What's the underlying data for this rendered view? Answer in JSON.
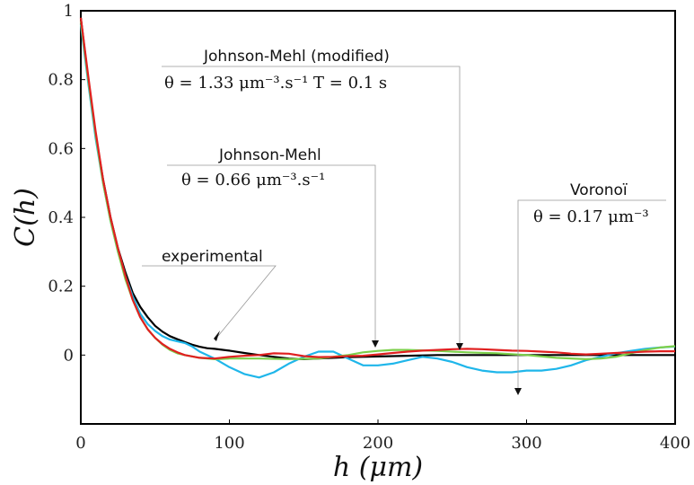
{
  "chart_data": {
    "type": "line",
    "xlabel": "h (μm)",
    "ylabel": "C(h)",
    "xlim": [
      0,
      400
    ],
    "ylim": [
      -0.2,
      1
    ],
    "x_ticks": [
      "0",
      "100",
      "200",
      "300",
      "400"
    ],
    "y_ticks": [
      "0",
      "0.2",
      "0.4",
      "0.6",
      "0.8",
      "1"
    ],
    "grid": false,
    "series": [
      {
        "name": "experimental",
        "color": "#000000",
        "points": [
          [
            0,
            0.98
          ],
          [
            5,
            0.8
          ],
          [
            10,
            0.64
          ],
          [
            15,
            0.51
          ],
          [
            20,
            0.4
          ],
          [
            25,
            0.31
          ],
          [
            30,
            0.24
          ],
          [
            35,
            0.18
          ],
          [
            40,
            0.14
          ],
          [
            45,
            0.11
          ],
          [
            50,
            0.085
          ],
          [
            55,
            0.068
          ],
          [
            60,
            0.055
          ],
          [
            65,
            0.046
          ],
          [
            70,
            0.038
          ],
          [
            75,
            0.03
          ],
          [
            80,
            0.024
          ],
          [
            85,
            0.02
          ],
          [
            90,
            0.018
          ],
          [
            100,
            0.013
          ],
          [
            110,
            0.006
          ],
          [
            120,
            0.0
          ],
          [
            130,
            -0.005
          ],
          [
            140,
            -0.01
          ],
          [
            150,
            -0.012
          ],
          [
            160,
            -0.01
          ],
          [
            170,
            -0.008
          ],
          [
            180,
            -0.006
          ],
          [
            200,
            -0.004
          ],
          [
            220,
            -0.002
          ],
          [
            240,
            0.0
          ],
          [
            260,
            0.0
          ],
          [
            280,
            0.0
          ],
          [
            300,
            0.0
          ],
          [
            320,
            0.0
          ],
          [
            340,
            0.0
          ],
          [
            360,
            0.0
          ],
          [
            380,
            0.0
          ],
          [
            400,
            0.0
          ]
        ]
      },
      {
        "name": "Voronoï",
        "color": "#1fb6ea",
        "points": [
          [
            0,
            0.96
          ],
          [
            5,
            0.79
          ],
          [
            10,
            0.63
          ],
          [
            15,
            0.5
          ],
          [
            20,
            0.39
          ],
          [
            25,
            0.3
          ],
          [
            30,
            0.23
          ],
          [
            35,
            0.17
          ],
          [
            40,
            0.12
          ],
          [
            45,
            0.09
          ],
          [
            50,
            0.07
          ],
          [
            55,
            0.055
          ],
          [
            60,
            0.045
          ],
          [
            65,
            0.04
          ],
          [
            70,
            0.035
          ],
          [
            75,
            0.025
          ],
          [
            80,
            0.01
          ],
          [
            90,
            -0.01
          ],
          [
            100,
            -0.035
          ],
          [
            110,
            -0.055
          ],
          [
            120,
            -0.065
          ],
          [
            130,
            -0.05
          ],
          [
            140,
            -0.025
          ],
          [
            150,
            -0.005
          ],
          [
            160,
            0.01
          ],
          [
            170,
            0.01
          ],
          [
            180,
            -0.01
          ],
          [
            190,
            -0.03
          ],
          [
            200,
            -0.03
          ],
          [
            210,
            -0.025
          ],
          [
            220,
            -0.015
          ],
          [
            230,
            -0.005
          ],
          [
            240,
            -0.01
          ],
          [
            250,
            -0.02
          ],
          [
            260,
            -0.035
          ],
          [
            270,
            -0.045
          ],
          [
            280,
            -0.05
          ],
          [
            290,
            -0.05
          ],
          [
            300,
            -0.045
          ],
          [
            310,
            -0.045
          ],
          [
            320,
            -0.04
          ],
          [
            330,
            -0.03
          ],
          [
            340,
            -0.015
          ],
          [
            350,
            -0.005
          ],
          [
            360,
            0.005
          ],
          [
            370,
            0.012
          ],
          [
            380,
            0.018
          ],
          [
            390,
            0.022
          ],
          [
            400,
            0.025
          ]
        ]
      },
      {
        "name": "Johnson-Mehl",
        "color": "#7ccf4a",
        "points": [
          [
            0,
            0.97
          ],
          [
            5,
            0.8
          ],
          [
            10,
            0.64
          ],
          [
            15,
            0.5
          ],
          [
            20,
            0.39
          ],
          [
            25,
            0.3
          ],
          [
            30,
            0.22
          ],
          [
            35,
            0.16
          ],
          [
            40,
            0.11
          ],
          [
            45,
            0.075
          ],
          [
            50,
            0.05
          ],
          [
            55,
            0.03
          ],
          [
            60,
            0.015
          ],
          [
            65,
            0.005
          ],
          [
            70,
            0.0
          ],
          [
            80,
            -0.008
          ],
          [
            90,
            -0.012
          ],
          [
            100,
            -0.01
          ],
          [
            120,
            -0.01
          ],
          [
            140,
            -0.012
          ],
          [
            160,
            -0.01
          ],
          [
            180,
            0.0
          ],
          [
            190,
            0.008
          ],
          [
            200,
            0.012
          ],
          [
            210,
            0.015
          ],
          [
            220,
            0.015
          ],
          [
            240,
            0.012
          ],
          [
            260,
            0.008
          ],
          [
            280,
            0.005
          ],
          [
            300,
            0.0
          ],
          [
            320,
            -0.008
          ],
          [
            340,
            -0.012
          ],
          [
            350,
            -0.01
          ],
          [
            360,
            -0.005
          ],
          [
            370,
            0.005
          ],
          [
            380,
            0.015
          ],
          [
            390,
            0.022
          ],
          [
            400,
            0.026
          ]
        ]
      },
      {
        "name": "Johnson-Mehl (modified)",
        "color": "#e02020",
        "points": [
          [
            0,
            0.98
          ],
          [
            5,
            0.81
          ],
          [
            10,
            0.65
          ],
          [
            15,
            0.51
          ],
          [
            20,
            0.4
          ],
          [
            25,
            0.31
          ],
          [
            30,
            0.23
          ],
          [
            35,
            0.16
          ],
          [
            40,
            0.11
          ],
          [
            45,
            0.075
          ],
          [
            50,
            0.05
          ],
          [
            55,
            0.032
          ],
          [
            60,
            0.018
          ],
          [
            65,
            0.008
          ],
          [
            70,
            0.0
          ],
          [
            80,
            -0.008
          ],
          [
            90,
            -0.01
          ],
          [
            100,
            -0.005
          ],
          [
            110,
            -0.002
          ],
          [
            120,
            0.0
          ],
          [
            130,
            0.005
          ],
          [
            140,
            0.004
          ],
          [
            150,
            -0.003
          ],
          [
            160,
            -0.006
          ],
          [
            170,
            -0.005
          ],
          [
            180,
            -0.003
          ],
          [
            190,
            -0.002
          ],
          [
            200,
            0.002
          ],
          [
            210,
            0.006
          ],
          [
            220,
            0.01
          ],
          [
            230,
            0.013
          ],
          [
            240,
            0.015
          ],
          [
            250,
            0.017
          ],
          [
            260,
            0.018
          ],
          [
            270,
            0.017
          ],
          [
            280,
            0.015
          ],
          [
            290,
            0.013
          ],
          [
            300,
            0.012
          ],
          [
            310,
            0.01
          ],
          [
            320,
            0.008
          ],
          [
            330,
            0.004
          ],
          [
            340,
            0.002
          ],
          [
            350,
            0.004
          ],
          [
            360,
            0.006
          ],
          [
            370,
            0.008
          ],
          [
            380,
            0.01
          ],
          [
            390,
            0.011
          ],
          [
            400,
            0.011
          ]
        ]
      }
    ],
    "annotations": [
      {
        "line1": "Johnson-Mehl (modified)",
        "line2": "θ = 1.33 μm⁻³.s⁻¹      T = 0.1 s",
        "target": [
          255,
          0.015
        ]
      },
      {
        "line1": "Johnson-Mehl",
        "line2": "θ = 0.66 μm⁻³.s⁻¹",
        "target": [
          198,
          0.012
        ]
      },
      {
        "line1": "Voronoï",
        "line2": "θ = 0.17 μm⁻³",
        "target": [
          295,
          -0.05
        ]
      },
      {
        "line1": "experimental",
        "line2": "",
        "target": [
          90,
          0.015
        ]
      }
    ]
  }
}
